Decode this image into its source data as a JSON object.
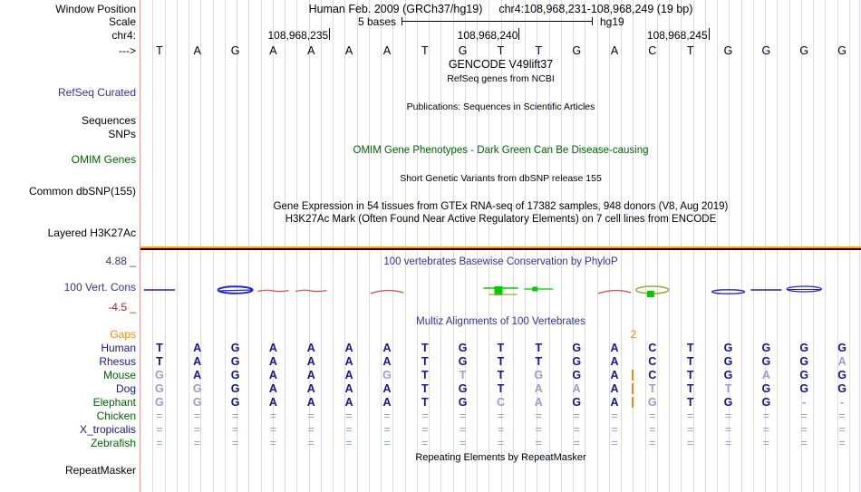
{
  "colors": {
    "black": "#000000",
    "navy": "#16168e",
    "light_base": "#9b9bd0",
    "green": "#006400",
    "blue_label": "#3333a0",
    "axis_blue": "#3a3a80",
    "maroon": "#8b3333",
    "orange": "#ef8b0f",
    "grid": "#d9d9f0",
    "red_guide": "#f29a9a",
    "cons_blue": "#2424c8",
    "cons_red": "#e04848",
    "cons_green": "#00c800",
    "cons_olive": "#a6a63c",
    "h3k_orange": "#ffa500",
    "h3k_dark": "#320000"
  },
  "header": {
    "assembly_title": "Human Feb. 2009 (GRCh37/hg19)",
    "position_text": "chr4:108,968,231-108,968,249 (19 bp)",
    "scale_value": "5 bases",
    "genome": "hg19",
    "coordinate_ticks": [
      {
        "label": "108,968,235",
        "col": 5
      },
      {
        "label": "108,968,240",
        "col": 10
      },
      {
        "label": "108,968,245",
        "col": 15
      }
    ]
  },
  "sequence": {
    "bases": [
      "T",
      "A",
      "G",
      "A",
      "A",
      "A",
      "A",
      "T",
      "G",
      "T",
      "T",
      "G",
      "A",
      "C",
      "T",
      "G",
      "G",
      "G",
      "G"
    ]
  },
  "left_labels": [
    {
      "key": "window-position",
      "text": "Window Position",
      "color": "black"
    },
    {
      "key": "scale",
      "text": "Scale",
      "color": "black"
    },
    {
      "key": "chrom",
      "text": "chr4:",
      "color": "black"
    },
    {
      "key": "strand",
      "text": "--->",
      "color": "black"
    },
    {
      "key": "refseq-curated",
      "text": "RefSeq Curated",
      "color": "blue_label"
    },
    {
      "key": "sequences",
      "text": "Sequences",
      "color": "black"
    },
    {
      "key": "snps",
      "text": "SNPs",
      "color": "black"
    },
    {
      "key": "omim-genes",
      "text": "OMIM Genes",
      "color": "green"
    },
    {
      "key": "common-dbsnp",
      "text": "Common dbSNP(155)",
      "color": "black"
    },
    {
      "key": "layered-h3k27ac",
      "text": "Layered H3K27Ac",
      "color": "black"
    },
    {
      "key": "cons-max",
      "text": "4.88 _",
      "color": "axis_blue"
    },
    {
      "key": "vert-cons",
      "text": "100 Vert. Cons",
      "color": "blue_label"
    },
    {
      "key": "cons-min",
      "text": "-4.5 _",
      "color": "maroon"
    },
    {
      "key": "gaps",
      "text": "Gaps",
      "color": "orange"
    },
    {
      "key": "human",
      "text": "Human",
      "color": "navy"
    },
    {
      "key": "rhesus",
      "text": "Rhesus",
      "color": "navy"
    },
    {
      "key": "mouse",
      "text": "Mouse",
      "color": "green"
    },
    {
      "key": "dog",
      "text": "Dog",
      "color": "navy"
    },
    {
      "key": "elephant",
      "text": "Elephant",
      "color": "green"
    },
    {
      "key": "chicken",
      "text": "Chicken",
      "color": "green"
    },
    {
      "key": "x-tropicalis",
      "text": "X_tropicalis",
      "color": "navy"
    },
    {
      "key": "zebrafish",
      "text": "Zebrafish",
      "color": "green"
    },
    {
      "key": "repeatmasker",
      "text": "RepeatMasker",
      "color": "black"
    }
  ],
  "center_titles": [
    {
      "key": "gencode",
      "text": "GENCODE V49lift37",
      "color": "black"
    },
    {
      "key": "refseq-ncbi",
      "text": "RefSeq genes from NCBI",
      "color": "black"
    },
    {
      "key": "publications",
      "text": "Publications: Sequences in Scientific Articles",
      "color": "black"
    },
    {
      "key": "omim-phenotypes",
      "text": "OMIM Gene Phenotypes - Dark Green Can Be Disease-causing",
      "color": "green"
    },
    {
      "key": "dbsnp-desc",
      "text": "Short Genetic Variants from dbSNP release 155",
      "color": "black"
    },
    {
      "key": "gtex-desc",
      "text": "Gene Expression in 54 tissues from GTEx RNA-seq of 17382 samples, 948 donors (V8, Aug 2019)",
      "color": "black"
    },
    {
      "key": "h3k27ac-desc",
      "text": "H3K27Ac Mark (Often Found Near Active Regulatory Elements) on 7 cell lines from ENCODE",
      "color": "black"
    },
    {
      "key": "phylop-title",
      "text": "100 vertebrates Basewise Conservation by PhyloP",
      "color": "blue_label"
    },
    {
      "key": "multiz-title",
      "text": "Multiz Alignments of 100 Vertebrates",
      "color": "blue_label"
    },
    {
      "key": "repeatmasker-desc",
      "text": "Repeating Elements by RepeatMasker",
      "color": "black"
    }
  ],
  "conservation": {
    "scale_max": "4.88",
    "scale_min": "-4.5",
    "marks": [
      {
        "col": 1,
        "color": "cons_blue",
        "shape": "dash"
      },
      {
        "col": 3,
        "color": "cons_blue",
        "shape": "thick-lens"
      },
      {
        "col": 4,
        "color": "cons_red",
        "shape": "wave"
      },
      {
        "col": 5,
        "color": "cons_red",
        "shape": "wave"
      },
      {
        "col": 7,
        "color": "cons_red",
        "shape": "arc"
      },
      {
        "col": 10,
        "color": "cons_green",
        "shape": "bar-block"
      },
      {
        "col": 11,
        "color": "cons_green",
        "shape": "line-block"
      },
      {
        "col": 13,
        "color": "cons_red",
        "shape": "arc"
      },
      {
        "col": 14,
        "color": "cons_olive",
        "shape": "lens-block"
      },
      {
        "col": 16,
        "color": "cons_blue",
        "shape": "flat-lens"
      },
      {
        "col": 17,
        "color": "cons_blue",
        "shape": "dash"
      },
      {
        "col": 18,
        "color": "cons_blue",
        "shape": "lens"
      }
    ]
  },
  "multiz": {
    "gap_row": {
      "count_label": "2",
      "after_col": 13
    },
    "rows": [
      {
        "key": "human",
        "cells": [
          "T",
          "A",
          "G",
          "A",
          "A",
          "A",
          "A",
          "T",
          "G",
          "T",
          "T",
          "G",
          "A",
          "C",
          "T",
          "G",
          "G",
          "G",
          "G"
        ],
        "light": []
      },
      {
        "key": "rhesus",
        "cells": [
          "T",
          "A",
          "G",
          "A",
          "A",
          "A",
          "A",
          "T",
          "G",
          "T",
          "T",
          "G",
          "A",
          "C",
          "T",
          "G",
          "G",
          "G",
          "A"
        ],
        "light": [
          19
        ]
      },
      {
        "key": "mouse",
        "cells": [
          "G",
          "A",
          "G",
          "A",
          "A",
          "A",
          "G",
          "T",
          "T",
          "T",
          "G",
          "G",
          "A",
          "C",
          "T",
          "G",
          "A",
          "G",
          "G"
        ],
        "light": [
          1,
          7,
          9,
          11,
          17
        ],
        "gap_after": 13
      },
      {
        "key": "dog",
        "cells": [
          "G",
          "G",
          "G",
          "A",
          "A",
          "A",
          "A",
          "T",
          "G",
          "T",
          "A",
          "A",
          "A",
          "T",
          "T",
          "T",
          "G",
          "G",
          "G"
        ],
        "light": [
          1,
          2,
          11,
          12,
          14,
          16
        ],
        "gap_after": 13
      },
      {
        "key": "elephant",
        "cells": [
          "G",
          "G",
          "G",
          "A",
          "A",
          "A",
          "A",
          "T",
          "G",
          "C",
          "A",
          "G",
          "A",
          "G",
          "T",
          "G",
          "G",
          "-",
          "-"
        ],
        "light": [
          1,
          2,
          10,
          11,
          14,
          18,
          19
        ],
        "gap_after": 13
      },
      {
        "key": "chicken",
        "cells": [
          "=",
          "=",
          "=",
          "=",
          "=",
          "=",
          "=",
          "=",
          "=",
          "=",
          "=",
          "=",
          "=",
          "=",
          "=",
          "=",
          "=",
          "=",
          "="
        ],
        "light": "all"
      },
      {
        "key": "x-tropicalis",
        "cells": [
          "=",
          "=",
          "=",
          "=",
          "=",
          "=",
          "=",
          "=",
          "=",
          "=",
          "=",
          "=",
          "=",
          "=",
          "=",
          "=",
          "=",
          "=",
          "="
        ],
        "light": "all"
      },
      {
        "key": "zebrafish",
        "cells": [
          "=",
          "=",
          "=",
          "=",
          "=",
          "=",
          "=",
          "=",
          "=",
          "=",
          "=",
          "=",
          "=",
          "=",
          "=",
          "=",
          "=",
          "=",
          "="
        ],
        "light": "all"
      }
    ]
  }
}
